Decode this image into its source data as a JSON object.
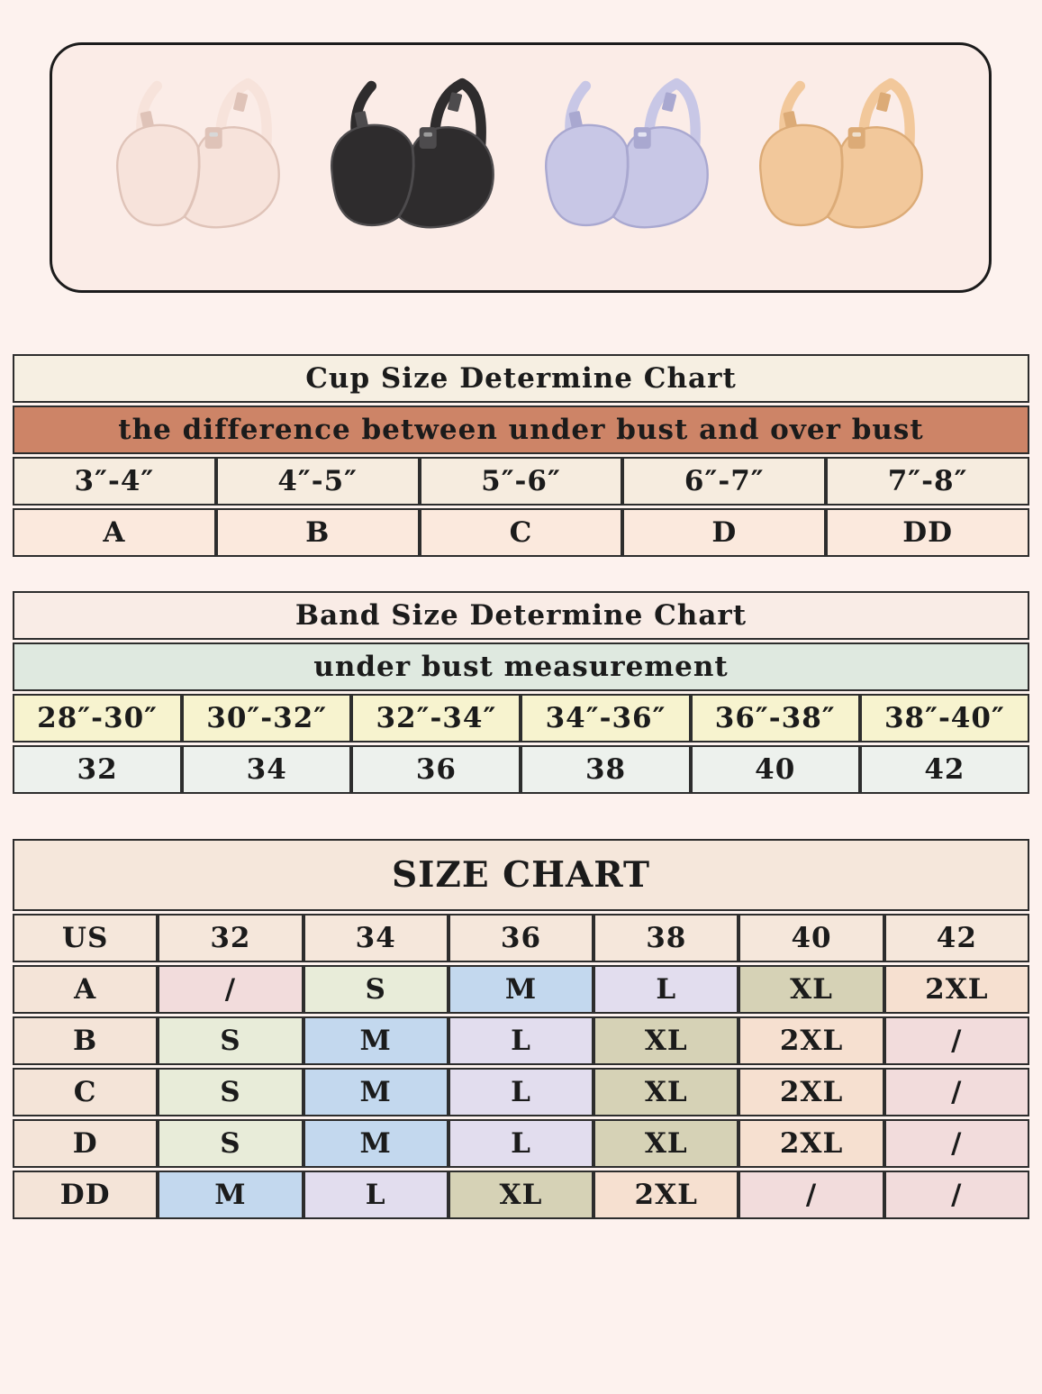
{
  "page": {
    "background": "#fdf2ee",
    "text_color": "#1b1b1b",
    "table_border_color": "#2d2d2d"
  },
  "banner": {
    "background": "#fbece7",
    "border_color": "#1c1c1c",
    "products": [
      {
        "name": "ivory-bra",
        "color": "#f7e3db",
        "shade": "#dfc3b8",
        "hardware": "#d8d8d8"
      },
      {
        "name": "black-bra",
        "color": "#2e2c2d",
        "shade": "#4d4b4d",
        "hardware": "#9b9b9b"
      },
      {
        "name": "lavender-bra",
        "color": "#c8c7e6",
        "shade": "#a9a8d0",
        "hardware": "#e4e4f2"
      },
      {
        "name": "nude-bra",
        "color": "#f2c89b",
        "shade": "#dcab77",
        "hardware": "#efe0cd"
      }
    ]
  },
  "cup_chart": {
    "title": "Cup Size Determine Chart",
    "subtitle": "the difference between under bust and over bust",
    "differences": [
      "3″-4″",
      "4″-5″",
      "5″-6″",
      "6″-7″",
      "7″-8″"
    ],
    "cup_sizes": [
      "A",
      "B",
      "C",
      "D",
      "DD"
    ],
    "colors": {
      "title_bg": "#f6efe2",
      "subtitle_bg": "#cd8467",
      "differences_bg": "#f6ecdf",
      "cups_bg": "#fbe9dd"
    }
  },
  "band_chart": {
    "title": "Band Size Determine Chart",
    "subtitle": "under bust measurement",
    "measurements": [
      "28″-30″",
      "30″-32″",
      "32″-34″",
      "34″-36″",
      "36″-38″",
      "38″-40″"
    ],
    "band_sizes": [
      "32",
      "34",
      "36",
      "38",
      "40",
      "42"
    ],
    "colors": {
      "title_bg": "#f9ece6",
      "subtitle_bg": "#dfe9e0",
      "measurements_bg": "#f7f3cf",
      "bands_bg": "#edf1ed"
    }
  },
  "size_chart": {
    "title": "SIZE CHART",
    "columns": [
      "US",
      "32",
      "34",
      "36",
      "38",
      "40",
      "42"
    ],
    "rows": [
      {
        "label": "A",
        "values": [
          "/",
          "S",
          "M",
          "L",
          "XL",
          "2XL"
        ]
      },
      {
        "label": "B",
        "values": [
          "S",
          "M",
          "L",
          "XL",
          "2XL",
          "/"
        ]
      },
      {
        "label": "C",
        "values": [
          "S",
          "M",
          "L",
          "XL",
          "2XL",
          "/"
        ]
      },
      {
        "label": "D",
        "values": [
          "S",
          "M",
          "L",
          "XL",
          "2XL",
          "/"
        ]
      },
      {
        "label": "DD",
        "values": [
          "M",
          "L",
          "XL",
          "2XL",
          "/",
          "/"
        ]
      }
    ],
    "colors": {
      "title_bg": "#f5e7db",
      "header_bg": "#f5e7db",
      "label_bg": "#f4e4d8",
      "value_S": "#e8ecd9",
      "value_M": "#c3d8ee",
      "value_L": "#e2ddee",
      "value_XL": "#d6d2b6",
      "value_2XL": "#f6e0d0",
      "value_slash": "#f2dcdc"
    }
  },
  "chart_data": [
    {
      "type": "table",
      "title": "Cup Size Determine Chart",
      "subtitle": "the difference between under bust and over bust",
      "categories": [
        "3″-4″",
        "4″-5″",
        "5″-6″",
        "6″-7″",
        "7″-8″"
      ],
      "values": [
        "A",
        "B",
        "C",
        "D",
        "DD"
      ]
    },
    {
      "type": "table",
      "title": "Band Size Determine Chart",
      "subtitle": "under bust measurement",
      "categories": [
        "28″-30″",
        "30″-32″",
        "32″-34″",
        "34″-36″",
        "36″-38″",
        "38″-40″"
      ],
      "values": [
        "32",
        "34",
        "36",
        "38",
        "40",
        "42"
      ]
    },
    {
      "type": "table",
      "title": "SIZE CHART",
      "columns": [
        "US",
        "32",
        "34",
        "36",
        "38",
        "40",
        "42"
      ],
      "rows": [
        [
          "A",
          "/",
          "S",
          "M",
          "L",
          "XL",
          "2XL"
        ],
        [
          "B",
          "S",
          "M",
          "L",
          "XL",
          "2XL",
          "/"
        ],
        [
          "C",
          "S",
          "M",
          "L",
          "XL",
          "2XL",
          "/"
        ],
        [
          "D",
          "S",
          "M",
          "L",
          "XL",
          "2XL",
          "/"
        ],
        [
          "DD",
          "M",
          "L",
          "XL",
          "2XL",
          "/",
          "/"
        ]
      ]
    }
  ]
}
